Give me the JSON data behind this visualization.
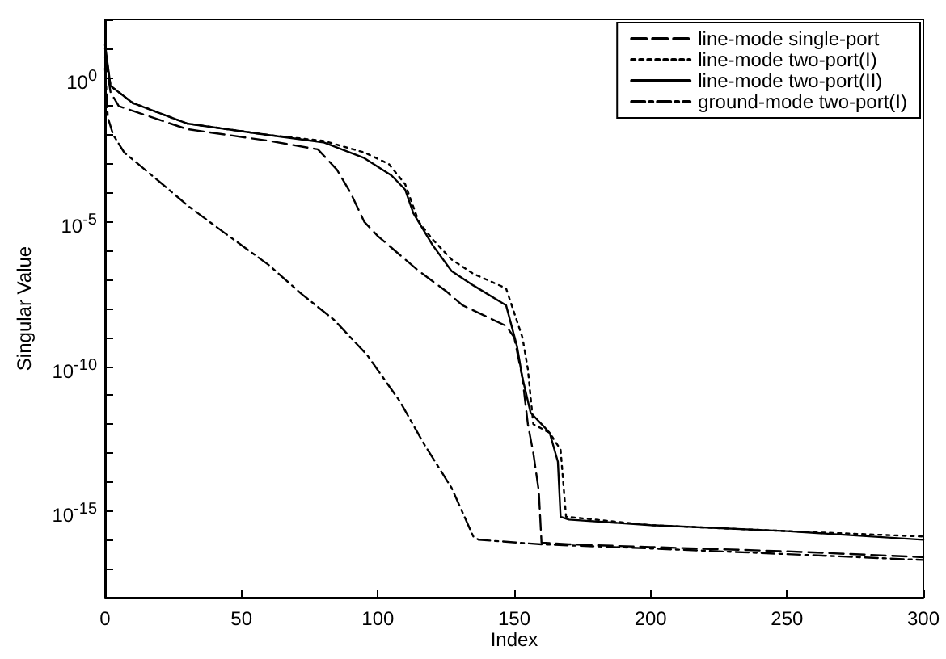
{
  "chart_data": {
    "type": "line",
    "xlabel": "Index",
    "ylabel": "Singular Value",
    "log": "y",
    "xlim": [
      0,
      300
    ],
    "xticks": [
      0,
      50,
      100,
      150,
      200,
      250,
      300
    ],
    "ylim": [
      1e-18,
      100
    ],
    "yticks": [
      {
        "value": 1e-18,
        "label": null
      },
      {
        "value": 1e-17,
        "label": null
      },
      {
        "value": 1e-16,
        "label": null
      },
      {
        "value": 1e-15,
        "label": "10$^{-15}$"
      },
      {
        "value": 1e-14,
        "label": null
      },
      {
        "value": 1e-13,
        "label": null
      },
      {
        "value": 1e-12,
        "label": null
      },
      {
        "value": 1e-11,
        "label": null
      },
      {
        "value": 1e-10,
        "label": "10$^{-10}$"
      },
      {
        "value": 1e-09,
        "label": null
      },
      {
        "value": 1e-08,
        "label": null
      },
      {
        "value": 1e-07,
        "label": null
      },
      {
        "value": 1e-06,
        "label": null
      },
      {
        "value": 1e-05,
        "label": "10$^{-5}$"
      },
      {
        "value": 0.0001,
        "label": null
      },
      {
        "value": 0.001,
        "label": null
      },
      {
        "value": 0.01,
        "label": null
      },
      {
        "value": 0.1,
        "label": null
      },
      {
        "value": 1,
        "label": "10$^{0}$"
      },
      {
        "value": 10,
        "label": null
      },
      {
        "value": 100,
        "label": null
      }
    ],
    "grid": false,
    "legend": "top right",
    "marker": "none",
    "series": [
      {
        "name": "line-mode single-port",
        "color": "#000000",
        "line_style": "dashed",
        "x": [
          0,
          2,
          5,
          30,
          60,
          78,
          85,
          90,
          95,
          100,
          110,
          115,
          125,
          131,
          147,
          150,
          153,
          155,
          157,
          159,
          160,
          170,
          200,
          250,
          300
        ],
        "values": [
          5,
          0.3,
          0.1,
          0.016,
          0.0063,
          0.0032,
          0.00063,
          0.0001,
          1e-05,
          3.2e-06,
          5e-07,
          2e-07,
          4e-08,
          1.3e-08,
          2.5e-09,
          1e-09,
          4e-11,
          1e-12,
          1e-13,
          5e-15,
          8e-17,
          7e-17,
          5.6e-17,
          4e-17,
          2.5e-17
        ]
      },
      {
        "name": "line-mode two-port(I)",
        "color": "#000000",
        "line_style": "dotted",
        "x": [
          0,
          2,
          10,
          30,
          60,
          80,
          95,
          104,
          110,
          115,
          120,
          127,
          135,
          147,
          153,
          155,
          157,
          163,
          167,
          169,
          200,
          250,
          300
        ],
        "values": [
          10,
          0.5,
          0.13,
          0.025,
          0.01,
          0.0063,
          0.0025,
          0.001,
          0.0002,
          1e-05,
          2.5e-06,
          5e-07,
          1.6e-07,
          5e-08,
          1e-09,
          8e-11,
          1e-12,
          5e-13,
          1.3e-13,
          6.3e-16,
          3.2e-16,
          2e-16,
          1.3e-16
        ]
      },
      {
        "name": "line-mode two-port(II)",
        "color": "#000000",
        "line_style": "solid",
        "x": [
          0,
          2,
          10,
          30,
          60,
          80,
          95,
          105,
          110,
          113,
          120,
          127,
          135,
          147,
          151,
          153,
          156,
          161,
          163,
          166,
          167,
          170,
          200,
          250,
          300
        ],
        "values": [
          13,
          0.5,
          0.13,
          0.025,
          0.01,
          0.0056,
          0.0016,
          0.0004,
          0.00013,
          2e-05,
          1.6e-06,
          2e-07,
          6.3e-08,
          1.3e-08,
          5e-10,
          4e-11,
          2.5e-12,
          8e-13,
          5e-13,
          5e-14,
          6.3e-16,
          5e-16,
          3.2e-16,
          2e-16,
          1e-16
        ]
      },
      {
        "name": "ground-mode two-port(I)",
        "color": "#000000",
        "line_style": "dashdot",
        "x": [
          0,
          1,
          3,
          7,
          21,
          31,
          44,
          60,
          72,
          84,
          96,
          108,
          117,
          127,
          135,
          137,
          160,
          200,
          250,
          300
        ],
        "values": [
          2,
          0.04,
          0.01,
          0.0025,
          0.0002,
          3.2e-05,
          4e-06,
          3.2e-07,
          3.2e-08,
          4e-09,
          2.5e-10,
          6.3e-12,
          2e-13,
          6.3e-15,
          1.3e-16,
          1e-16,
          7e-17,
          5e-17,
          3.2e-17,
          2e-17
        ]
      }
    ]
  }
}
